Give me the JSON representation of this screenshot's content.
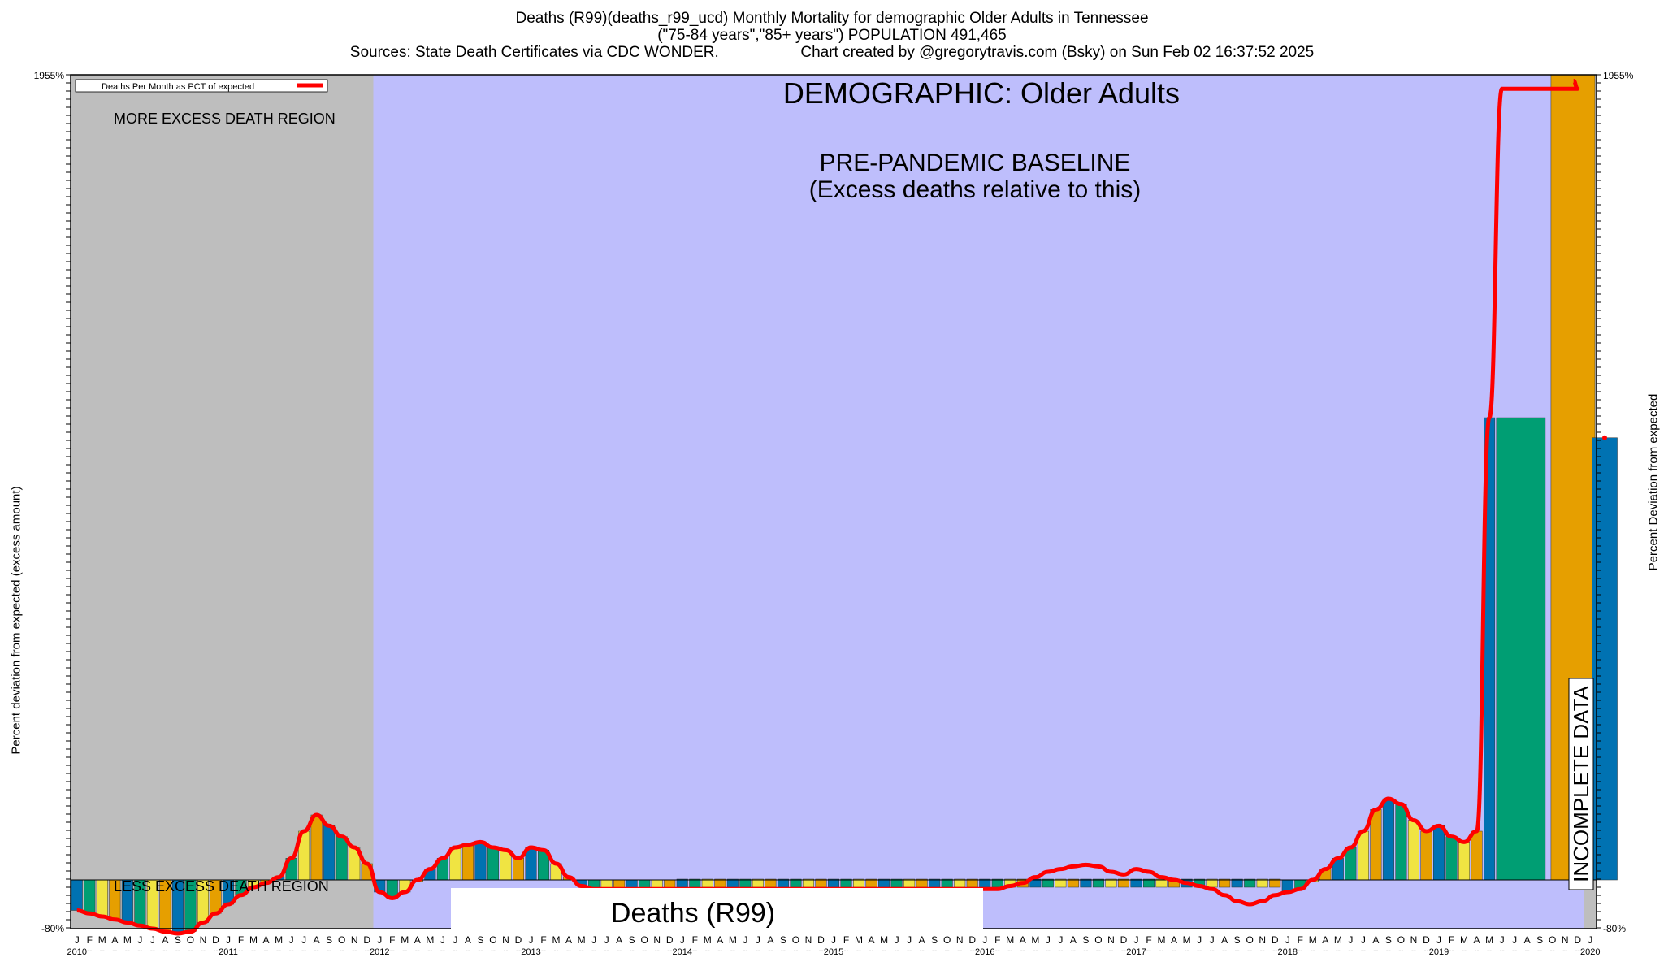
{
  "header": {
    "line1": "Deaths (R99)(deaths_r99_ucd) Monthly Mortality for demographic Older Adults in Tennessee",
    "line2": "(\"75-84 years\",\"85+ years\") POPULATION 491,465",
    "line3_left": "Sources: State Death Certificates via CDC WONDER.",
    "line3_right": "Chart created by @gregorytravis.com (Bsky) on Sun Feb 02 16:37:52 2025"
  },
  "axes": {
    "left_label": "Percent deviation from expected (excess amount)",
    "right_label": "Percent Deviation from expected"
  },
  "chart_data": {
    "type": "bar",
    "title": "DEMOGRAPHIC: Older Adults",
    "legend": {
      "label": "Deaths Per Month as PCT of expected",
      "color": "#ff0000",
      "position": "top-left"
    },
    "annotations": {
      "more_region": "MORE EXCESS DEATH REGION",
      "less_region": "LESS EXCESS DEATH REGION",
      "baseline_line1": "PRE-PANDEMIC BASELINE",
      "baseline_line2": "(Excess deaths relative to this)",
      "series_label": "Deaths (R99)",
      "incomplete": "INCOMPLETE DATA"
    },
    "y_range": [
      -80,
      1955
    ],
    "y_ticks_visible": [
      "-80%",
      "1955%"
    ],
    "month_letters": [
      "J",
      "F",
      "M",
      "A",
      "M",
      "J",
      "J",
      "A",
      "S",
      "O",
      "N",
      "D"
    ],
    "years": [
      "2010",
      "2011",
      "2012",
      "2013",
      "2014",
      "2015",
      "2016",
      "2017",
      "2018",
      "2019",
      "2020"
    ],
    "start": "2010-01",
    "series_colors": [
      "#0072b2",
      "#009e73",
      "#f0e442",
      "#e69f00"
    ],
    "values": [
      -50,
      -55,
      -60,
      -65,
      -70,
      -75,
      -80,
      -85,
      -88,
      -85,
      -70,
      -55,
      -40,
      -25,
      -12,
      -5,
      5,
      40,
      90,
      120,
      100,
      80,
      60,
      30,
      -20,
      -30,
      -20,
      0,
      20,
      40,
      60,
      65,
      70,
      60,
      55,
      40,
      60,
      55,
      30,
      5,
      -10,
      -15,
      -15,
      -15,
      -15,
      -15,
      -15,
      -15,
      -15,
      -15,
      -15,
      -15,
      -15,
      -15,
      -15,
      -15,
      -15,
      -15,
      -15,
      -15,
      -15,
      -15,
      -15,
      -15,
      -15,
      -15,
      -15,
      -15,
      -15,
      -15,
      -15,
      -15,
      -15,
      -15,
      -10,
      -5,
      5,
      15,
      20,
      25,
      28,
      25,
      15,
      10,
      20,
      15,
      5,
      0,
      -5,
      -10,
      -15,
      -25,
      -35,
      -40,
      -35,
      -25,
      -20,
      -15,
      0,
      20,
      40,
      60,
      90,
      130,
      150,
      140,
      110,
      90,
      100,
      80,
      70,
      90,
      1100,
      1920,
      1920,
      1920,
      1920,
      1920,
      1920,
      1920,
      1050
    ],
    "series": [
      {
        "name": "Deaths Per Month as PCT of expected",
        "values": [
          -50,
          -55,
          -60,
          -65,
          -70,
          -75,
          -80,
          -85,
          -88,
          -85,
          -70,
          -55,
          -40,
          -25,
          -12,
          -5,
          5,
          40,
          90,
          120,
          100,
          80,
          60,
          30,
          -20,
          -30,
          -20,
          0,
          20,
          40,
          60,
          65,
          70,
          60,
          55,
          40,
          60,
          55,
          30,
          5,
          -10,
          -15,
          -15,
          -15,
          -15,
          -15,
          -15,
          -15,
          -15,
          -15,
          -15,
          -15,
          -15,
          -15,
          -15,
          -15,
          -15,
          -15,
          -15,
          -15,
          -15,
          -15,
          -15,
          -15,
          -15,
          -15,
          -15,
          -15,
          -15,
          -15,
          -15,
          -15,
          -15,
          -15,
          -10,
          -5,
          5,
          15,
          20,
          25,
          28,
          25,
          15,
          10,
          20,
          15,
          5,
          0,
          -5,
          -10,
          -15,
          -25,
          -35,
          -40,
          -35,
          -25,
          -20,
          -15,
          0,
          20,
          40,
          60,
          90,
          130,
          150,
          140,
          110,
          90,
          100,
          80,
          70,
          90,
          1100,
          1920,
          1920,
          1920,
          1920,
          1920,
          1920,
          1920,
          1050
        ]
      }
    ],
    "regions": {
      "more_excess": [
        "2010-01",
        "2011-12"
      ],
      "incomplete": [
        "2020-01",
        "2020-03"
      ]
    },
    "grid": false
  }
}
